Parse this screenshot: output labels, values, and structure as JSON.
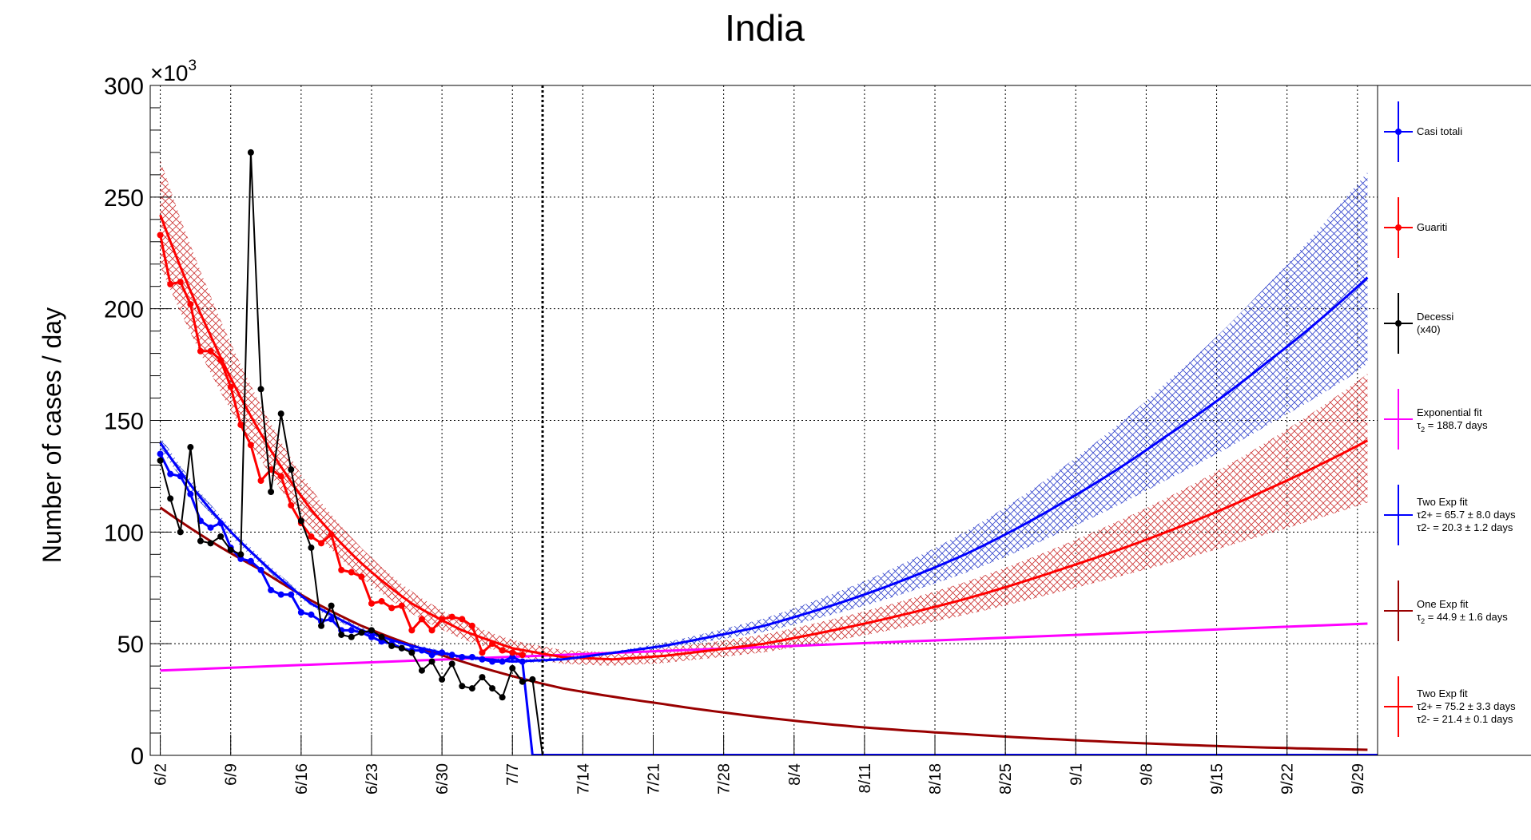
{
  "chart_data": {
    "type": "line",
    "title": "India",
    "ylabel": "Number of cases / day",
    "y_exponent_label": "×10³",
    "y_exponent_base": "×10",
    "y_exponent_power": "3",
    "ylim": [
      0,
      300000
    ],
    "y_ticks": [
      0,
      50000,
      100000,
      150000,
      200000,
      250000,
      300000
    ],
    "y_tick_labels": [
      "0",
      "50",
      "100",
      "150",
      "200",
      "250",
      "300"
    ],
    "x_ticks": [
      "6/2",
      "6/9",
      "6/16",
      "6/23",
      "6/30",
      "7/7",
      "7/14",
      "7/21",
      "7/28",
      "8/4",
      "8/11",
      "8/18",
      "8/25",
      "9/1",
      "9/8",
      "9/15",
      "9/22",
      "9/29"
    ],
    "x_day_range": [
      -1,
      121
    ],
    "vertical_marker_day": 38,
    "grid": true,
    "legend_position": "right",
    "colors": {
      "casi": "#0000ff",
      "guariti": "#ff0000",
      "decessi": "#000000",
      "exp_fit": "#ff00ff",
      "one_exp": "#990000",
      "band_red": "#cc3333",
      "band_blue": "#3344cc"
    },
    "series": [
      {
        "name": "Casi totali",
        "x_start": 0,
        "values": [
          135000,
          126000,
          125000,
          117000,
          105000,
          102000,
          104000,
          93000,
          88000,
          87000,
          83000,
          74000,
          72000,
          72000,
          64000,
          63000,
          60000,
          61000,
          56000,
          56000,
          55000,
          53000,
          51000,
          50000,
          48000,
          47000,
          47000,
          45000,
          46000,
          45000,
          44000,
          44000,
          43000,
          42000,
          42000,
          44000,
          42000,
          0
        ]
      },
      {
        "name": "Guariti",
        "x_start": 0,
        "values": [
          233000,
          211000,
          212000,
          202000,
          181000,
          181000,
          177000,
          165000,
          148000,
          139000,
          123000,
          128000,
          125000,
          112000,
          104000,
          98000,
          95000,
          99000,
          83000,
          82000,
          80000,
          68000,
          69000,
          66000,
          67000,
          56000,
          61000,
          56000,
          61000,
          62000,
          61000,
          58000,
          46000,
          50000,
          47000,
          46000,
          45000
        ]
      },
      {
        "name": "Decessi",
        "name_line2": "(x40)",
        "x_start": 0,
        "values": [
          132000,
          115000,
          100000,
          138000,
          96000,
          95000,
          98000,
          92000,
          90000,
          270000,
          164000,
          118000,
          153000,
          128000,
          105000,
          93000,
          58000,
          67000,
          54000,
          53000,
          55000,
          56000,
          53000,
          49000,
          48000,
          46000,
          38000,
          42000,
          34000,
          41000,
          31000,
          30000,
          35000,
          30000,
          26000,
          39000,
          33000,
          34000,
          0
        ]
      }
    ],
    "fits": [
      {
        "name": "Exponential fit",
        "param_symbol": "τ",
        "param_sub": "2",
        "param_value": "= 188.7  days",
        "from_day": 0,
        "to_day": 120,
        "start_value": 38000,
        "end_value": 59000
      },
      {
        "name": "Two Exp fit",
        "param1": "τ2+ = 65.7 ± 8.0 days",
        "param2": "τ2- = 20.3 ± 1.2 days",
        "from_day": 0,
        "to_day": 120,
        "values_sampled": [
          [
            0,
            140000
          ],
          [
            5,
            110000
          ],
          [
            10,
            87000
          ],
          [
            15,
            68000
          ],
          [
            20,
            56000
          ],
          [
            25,
            49000
          ],
          [
            30,
            44000
          ],
          [
            35,
            42000
          ],
          [
            40,
            43000
          ],
          [
            50,
            49000
          ],
          [
            60,
            58000
          ],
          [
            70,
            72000
          ],
          [
            80,
            90000
          ],
          [
            90,
            114000
          ],
          [
            100,
            143000
          ],
          [
            110,
            176000
          ],
          [
            120,
            214000
          ]
        ]
      },
      {
        "name": "One Exp fit",
        "param_symbol": "τ",
        "param_sub": "2",
        "param_value": "= 44.9  ± 1.6 days",
        "from_day": 0,
        "to_day": 120,
        "values_sampled": [
          [
            0,
            111000
          ],
          [
            10,
            83000
          ],
          [
            20,
            58000
          ],
          [
            30,
            42000
          ],
          [
            40,
            30000
          ],
          [
            50,
            23000
          ],
          [
            60,
            17000
          ],
          [
            70,
            12500
          ],
          [
            80,
            9500
          ],
          [
            90,
            7000
          ],
          [
            100,
            5000
          ],
          [
            110,
            3500
          ],
          [
            120,
            2500
          ]
        ]
      },
      {
        "name": "Two Exp fit",
        "param1": "τ2+ = 75.2 ± 3.3 days",
        "param2": "τ2- = 21.4 ± 0.1 days",
        "from_day": 0,
        "to_day": 120,
        "values_sampled": [
          [
            0,
            242000
          ],
          [
            5,
            188000
          ],
          [
            10,
            144000
          ],
          [
            15,
            110000
          ],
          [
            20,
            86000
          ],
          [
            25,
            68000
          ],
          [
            30,
            56000
          ],
          [
            35,
            48000
          ],
          [
            40,
            44000
          ],
          [
            45,
            43000
          ],
          [
            50,
            44500
          ],
          [
            60,
            50000
          ],
          [
            70,
            59000
          ],
          [
            80,
            70000
          ],
          [
            90,
            84000
          ],
          [
            100,
            100000
          ],
          [
            110,
            119000
          ],
          [
            120,
            141000
          ]
        ]
      }
    ]
  }
}
